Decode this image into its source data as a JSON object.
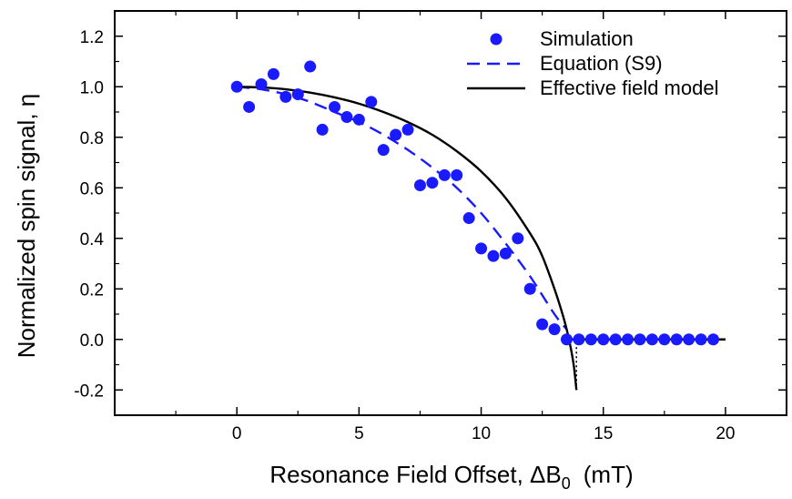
{
  "chart_data": {
    "type": "scatter",
    "title": "",
    "xlabel": "Resonance Field Offset, ΔB",
    "xlabel_sub": "0",
    "xlabel_unit": "(mT)",
    "ylabel": "Normalized spin signal, η",
    "xlim": [
      -5,
      22.5
    ],
    "ylim": [
      -0.3,
      1.3
    ],
    "xticks": [
      0,
      5,
      10,
      15,
      20
    ],
    "yticks": [
      -0.2,
      0.0,
      0.2,
      0.4,
      0.6,
      0.8,
      1.0,
      1.2
    ],
    "xtick_labels": [
      "0",
      "5",
      "10",
      "15",
      "20"
    ],
    "ytick_labels": [
      "-0.2",
      "0.0",
      "0.2",
      "0.4",
      "0.6",
      "0.8",
      "1.0",
      "1.2"
    ],
    "grid": false,
    "legend_position": "top-right",
    "series": [
      {
        "name": "Simulation",
        "style": "markers",
        "color": "#1a1aff",
        "x": [
          0,
          0.5,
          1,
          1.5,
          2,
          2.5,
          3,
          3.5,
          4,
          4.5,
          5,
          5.5,
          6,
          6.5,
          7,
          7.5,
          8,
          8.5,
          9,
          9.5,
          10,
          10.5,
          11,
          11.5,
          12,
          12.5,
          13,
          13.5,
          14,
          14.5,
          15,
          15.5,
          16,
          16.5,
          17,
          17.5,
          18,
          18.5,
          19,
          19.5
        ],
        "y": [
          1.0,
          0.92,
          1.01,
          1.05,
          0.96,
          0.97,
          1.08,
          0.83,
          0.92,
          0.88,
          0.87,
          0.94,
          0.75,
          0.81,
          0.83,
          0.61,
          0.62,
          0.65,
          0.65,
          0.48,
          0.36,
          0.33,
          0.34,
          0.4,
          0.2,
          0.06,
          0.04,
          0.0,
          0.0,
          0.0,
          0.0,
          0.0,
          0.0,
          0.0,
          0.0,
          0.0,
          0.0,
          0.0,
          0.0,
          0.0
        ]
      },
      {
        "name": "Equation (S9)",
        "style": "dashed",
        "color": "#1a1aff",
        "x": [
          0,
          1,
          2,
          3,
          4,
          5,
          6,
          7,
          8,
          9,
          10,
          11,
          12,
          13,
          13.5
        ],
        "y": [
          1.0,
          0.99,
          0.97,
          0.94,
          0.9,
          0.86,
          0.81,
          0.75,
          0.68,
          0.6,
          0.5,
          0.38,
          0.25,
          0.1,
          0.04
        ]
      },
      {
        "name": "Effective field model",
        "style": "solid",
        "color": "#000000",
        "x": [
          0,
          1,
          2,
          3,
          4,
          5,
          6,
          7,
          8,
          9,
          10,
          11,
          12,
          12.5,
          13,
          13.3,
          13.5,
          13.7,
          13.8,
          13.9
        ],
        "y": [
          1.0,
          0.997,
          0.99,
          0.977,
          0.958,
          0.933,
          0.9,
          0.86,
          0.81,
          0.745,
          0.665,
          0.56,
          0.42,
          0.33,
          0.2,
          0.11,
          0.04,
          -0.05,
          -0.11,
          -0.2
        ]
      },
      {
        "style": "dotted",
        "color": "#000000",
        "x": [
          13.9,
          13.9
        ],
        "y": [
          -0.2,
          0.0
        ]
      },
      {
        "style": "solid",
        "color": "#000000",
        "x": [
          13.6,
          20
        ],
        "y": [
          0.0,
          0.0
        ]
      }
    ]
  }
}
